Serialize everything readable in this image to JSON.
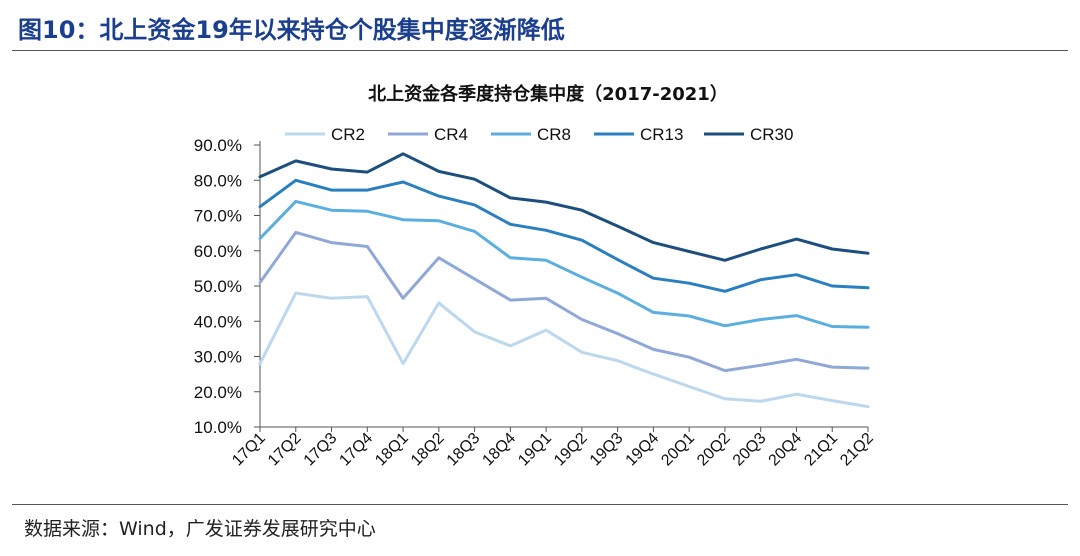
{
  "figure": {
    "title": "图10：北上资金19年以来持仓个股集中度逐渐降低",
    "source": "数据来源：Wind，广发证券发展研究中心"
  },
  "chart_data": {
    "type": "line",
    "title": "北上资金各季度持仓集中度（2017-2021）",
    "xlabel": "",
    "ylabel": "",
    "ylim": [
      10,
      90
    ],
    "yticks": [
      "10.0%",
      "20.0%",
      "30.0%",
      "40.0%",
      "50.0%",
      "60.0%",
      "70.0%",
      "80.0%",
      "90.0%"
    ],
    "legend_position": "top",
    "categories": [
      "17Q1",
      "17Q2",
      "17Q3",
      "17Q4",
      "18Q1",
      "18Q2",
      "18Q3",
      "18Q4",
      "19Q1",
      "19Q2",
      "19Q3",
      "19Q4",
      "20Q1",
      "20Q2",
      "20Q3",
      "20Q4",
      "21Q1",
      "21Q2"
    ],
    "series": [
      {
        "name": "CR2",
        "color": "#bcd8ef",
        "values": [
          28.0,
          48.0,
          46.5,
          47.0,
          28.0,
          45.2,
          37.0,
          33.0,
          37.5,
          31.2,
          28.8,
          25.0,
          21.5,
          18.0,
          17.3,
          19.3,
          17.5,
          15.8
        ]
      },
      {
        "name": "CR4",
        "color": "#8fa8d8",
        "values": [
          51.0,
          65.2,
          62.3,
          61.2,
          46.5,
          58.0,
          52.0,
          46.0,
          46.5,
          40.5,
          36.5,
          32.0,
          29.8,
          26.0,
          27.5,
          29.2,
          27.0,
          26.7
        ]
      },
      {
        "name": "CR8",
        "color": "#5aaee0",
        "values": [
          63.5,
          74.0,
          71.5,
          71.2,
          68.8,
          68.5,
          65.5,
          58.0,
          57.3,
          52.5,
          48.0,
          42.5,
          41.5,
          38.7,
          40.5,
          41.6,
          38.5,
          38.3
        ]
      },
      {
        "name": "CR13",
        "color": "#2a7fc0",
        "values": [
          72.5,
          80.0,
          77.2,
          77.2,
          79.5,
          75.5,
          73.0,
          67.5,
          65.8,
          63.0,
          57.5,
          52.2,
          50.8,
          48.5,
          51.8,
          53.2,
          50.0,
          49.5
        ]
      },
      {
        "name": "CR30",
        "color": "#1d4f7e",
        "values": [
          81.0,
          85.5,
          83.2,
          82.3,
          87.5,
          82.5,
          80.3,
          75.0,
          73.8,
          71.5,
          67.0,
          62.3,
          59.8,
          57.3,
          60.5,
          63.3,
          60.5,
          59.3
        ]
      }
    ]
  }
}
